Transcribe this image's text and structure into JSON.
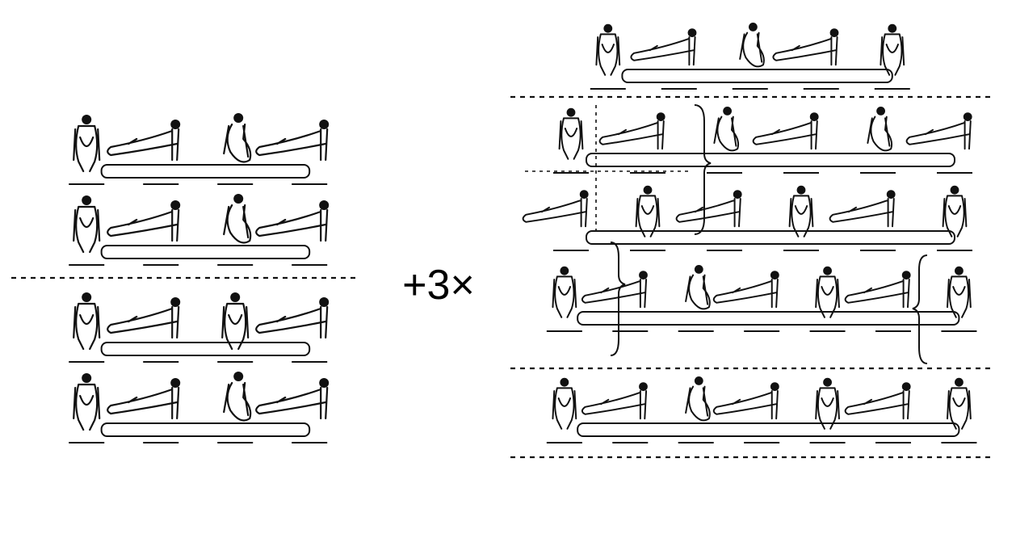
{
  "operator_text": "+3×",
  "colors": {
    "ink": "#111111",
    "paper": "#ffffff"
  },
  "left_sequence": {
    "sections": [
      {
        "rows": [
          {
            "figures": [
              {
                "pose": "front-support"
              },
              {
                "pose": "side-support"
              },
              {
                "pose": "tuck-swing"
              },
              {
                "pose": "side-support"
              }
            ],
            "apparatus": "pommel-horse"
          },
          {
            "figures": [
              {
                "pose": "front-support"
              },
              {
                "pose": "side-support"
              },
              {
                "pose": "tuck-swing"
              },
              {
                "pose": "side-support"
              }
            ],
            "apparatus": "pommel-horse"
          }
        ]
      },
      {
        "rows": [
          {
            "figures": [
              {
                "pose": "front-support"
              },
              {
                "pose": "side-support"
              },
              {
                "pose": "front-support"
              },
              {
                "pose": "side-support"
              }
            ],
            "apparatus": "pommel-horse"
          },
          {
            "figures": [
              {
                "pose": "front-support"
              },
              {
                "pose": "side-support"
              },
              {
                "pose": "tuck-swing"
              },
              {
                "pose": "side-support"
              }
            ],
            "apparatus": "pommel-horse"
          }
        ]
      }
    ]
  },
  "right_sequence": {
    "sections": [
      {
        "rows": [
          {
            "figures": [
              {
                "pose": "front-support"
              },
              {
                "pose": "side-support"
              },
              {
                "pose": "tuck-swing"
              },
              {
                "pose": "side-support"
              },
              {
                "pose": "front-support"
              }
            ],
            "apparatus": "pommel-horse"
          }
        ]
      },
      {
        "rows": [
          {
            "figures": [
              {
                "pose": "front-support"
              },
              {
                "pose": "side-support"
              },
              {
                "pose": "tuck-swing"
              },
              {
                "pose": "side-support"
              },
              {
                "pose": "tuck-swing"
              },
              {
                "pose": "side-support"
              }
            ],
            "apparatus": "pommel-horse"
          },
          {
            "figures": [
              {
                "pose": "side-support"
              },
              {
                "pose": "front-support"
              },
              {
                "pose": "side-support"
              },
              {
                "pose": "front-support"
              },
              {
                "pose": "side-support"
              },
              {
                "pose": "front-support"
              }
            ],
            "apparatus": "pommel-horse"
          }
        ]
      },
      {
        "rows": [
          {
            "figures": [
              {
                "pose": "front-support"
              },
              {
                "pose": "side-support"
              },
              {
                "pose": "tuck-swing"
              },
              {
                "pose": "side-support"
              },
              {
                "pose": "front-support"
              },
              {
                "pose": "side-support"
              },
              {
                "pose": "front-support"
              }
            ],
            "apparatus": "pommel-horse"
          }
        ]
      },
      {
        "rows": [
          {
            "figures": [
              {
                "pose": "front-support"
              },
              {
                "pose": "side-support"
              },
              {
                "pose": "tuck-swing"
              },
              {
                "pose": "side-support"
              },
              {
                "pose": "front-support"
              },
              {
                "pose": "side-support"
              },
              {
                "pose": "front-support"
              }
            ],
            "apparatus": "pommel-horse"
          }
        ]
      }
    ]
  }
}
